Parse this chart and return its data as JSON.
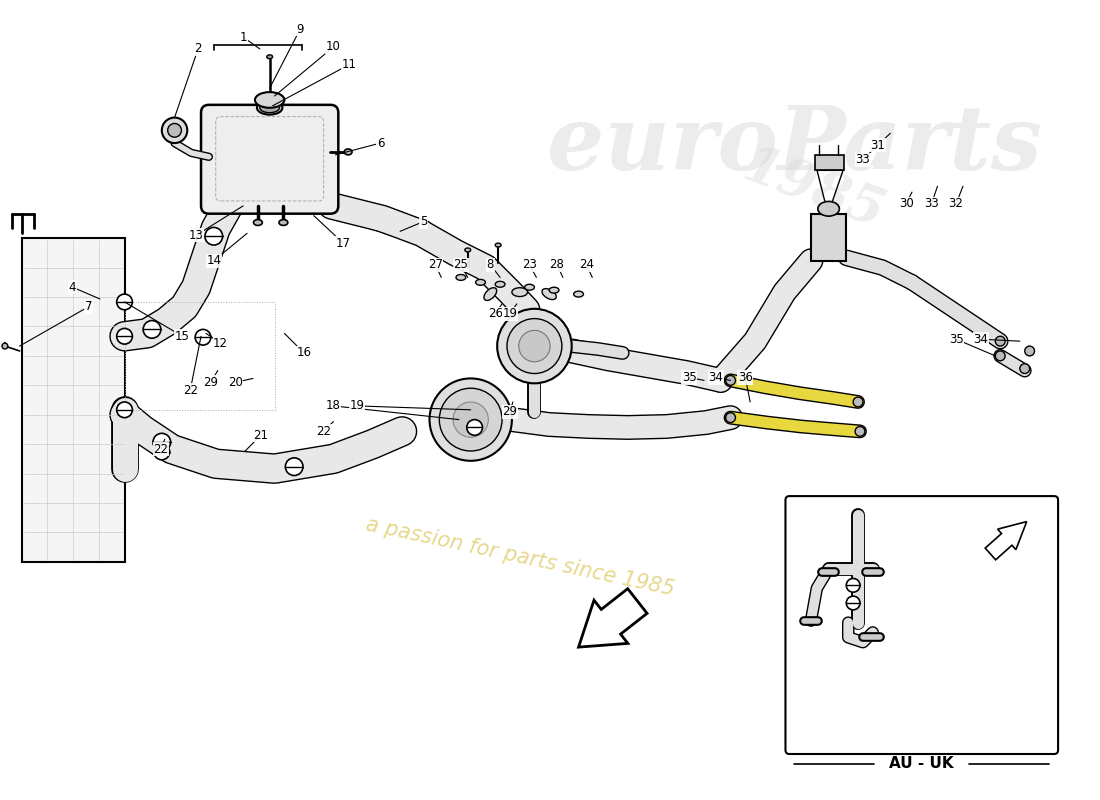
{
  "background": "#ffffff",
  "line_color": "#000000",
  "hose_fill": "#e8e8e8",
  "hose_stroke": "#000000",
  "yellow_hose_fill": "#e8d840",
  "yellow_hose_stroke": "#000000",
  "watermark_gray": "#d8d8d8",
  "watermark_yellow": "#c8a800",
  "au_uk_label": "AU - UK",
  "fig_width": 11.0,
  "fig_height": 8.0,
  "dpi": 100
}
